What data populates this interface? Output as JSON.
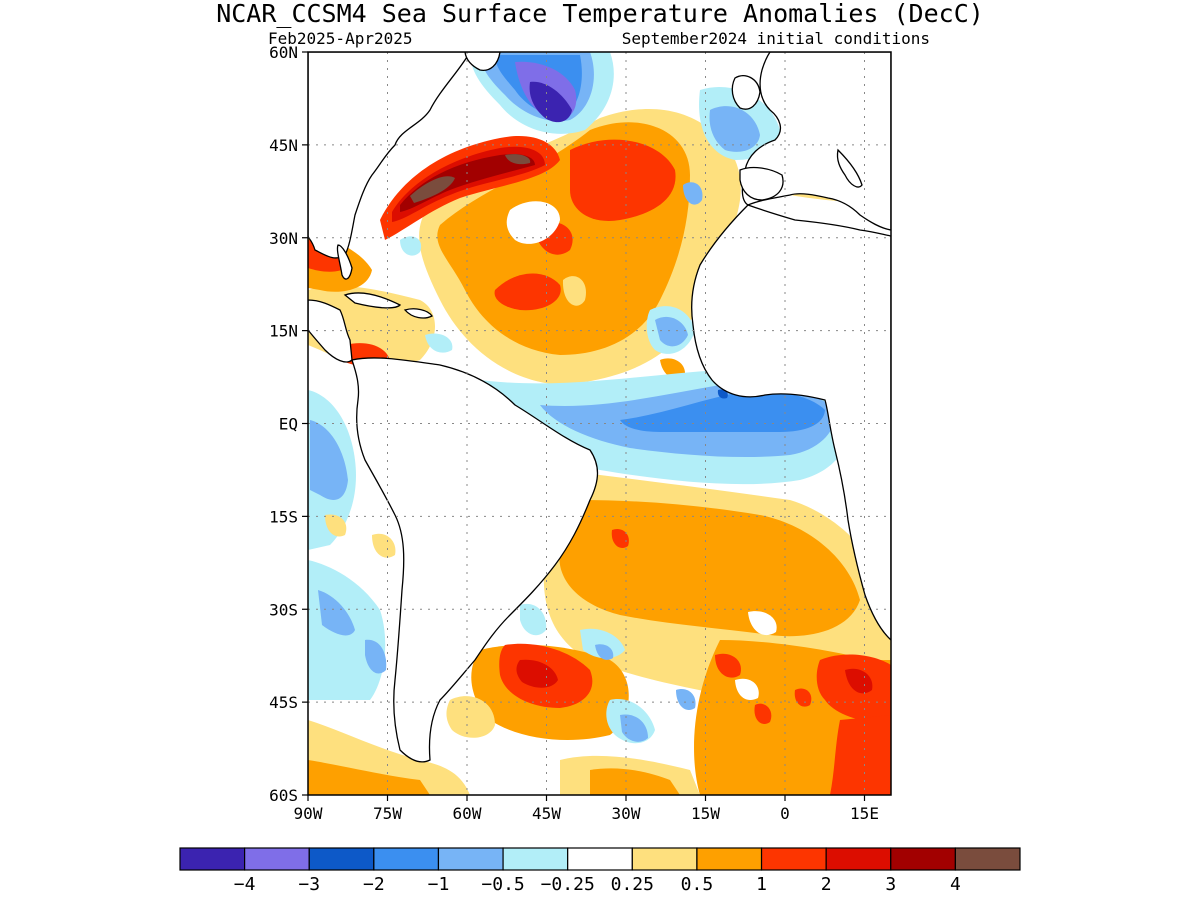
{
  "title": "NCAR_CCSM4 Sea Surface Temperature Anomalies (DecC)",
  "period": "Feb2025-Apr2025",
  "initial_conditions": "September2024 initial conditions",
  "map": {
    "lon_range": [
      -90,
      20
    ],
    "lat_range": [
      -60,
      60
    ],
    "lat_ticks": [
      {
        "value": 60,
        "label": "60N"
      },
      {
        "value": 45,
        "label": "45N"
      },
      {
        "value": 30,
        "label": "30N"
      },
      {
        "value": 15,
        "label": "15N"
      },
      {
        "value": 0,
        "label": "EQ"
      },
      {
        "value": -15,
        "label": "15S"
      },
      {
        "value": -30,
        "label": "30S"
      },
      {
        "value": -45,
        "label": "45S"
      },
      {
        "value": -60,
        "label": "60S"
      }
    ],
    "lon_ticks": [
      {
        "value": -90,
        "label": "90W"
      },
      {
        "value": -75,
        "label": "75W"
      },
      {
        "value": -60,
        "label": "60W"
      },
      {
        "value": -45,
        "label": "45W"
      },
      {
        "value": -30,
        "label": "30W"
      },
      {
        "value": -15,
        "label": "15W"
      },
      {
        "value": 0,
        "label": "0"
      },
      {
        "value": 15,
        "label": "15E"
      }
    ]
  },
  "colorbar": {
    "colors": [
      "#3b23b0",
      "#7f6ee8",
      "#0d59c8",
      "#3b8ff0",
      "#77b4f6",
      "#b2eef8",
      "#ffffff",
      "#fee07e",
      "#fea000",
      "#fd3500",
      "#dc0d00",
      "#a20000",
      "#7a4c3d"
    ],
    "labels": [
      "-4",
      "-3",
      "-2",
      "-1",
      "-0.5",
      "-0.25",
      "0.25",
      "0.5",
      "1",
      "2",
      "3",
      "4"
    ]
  }
}
